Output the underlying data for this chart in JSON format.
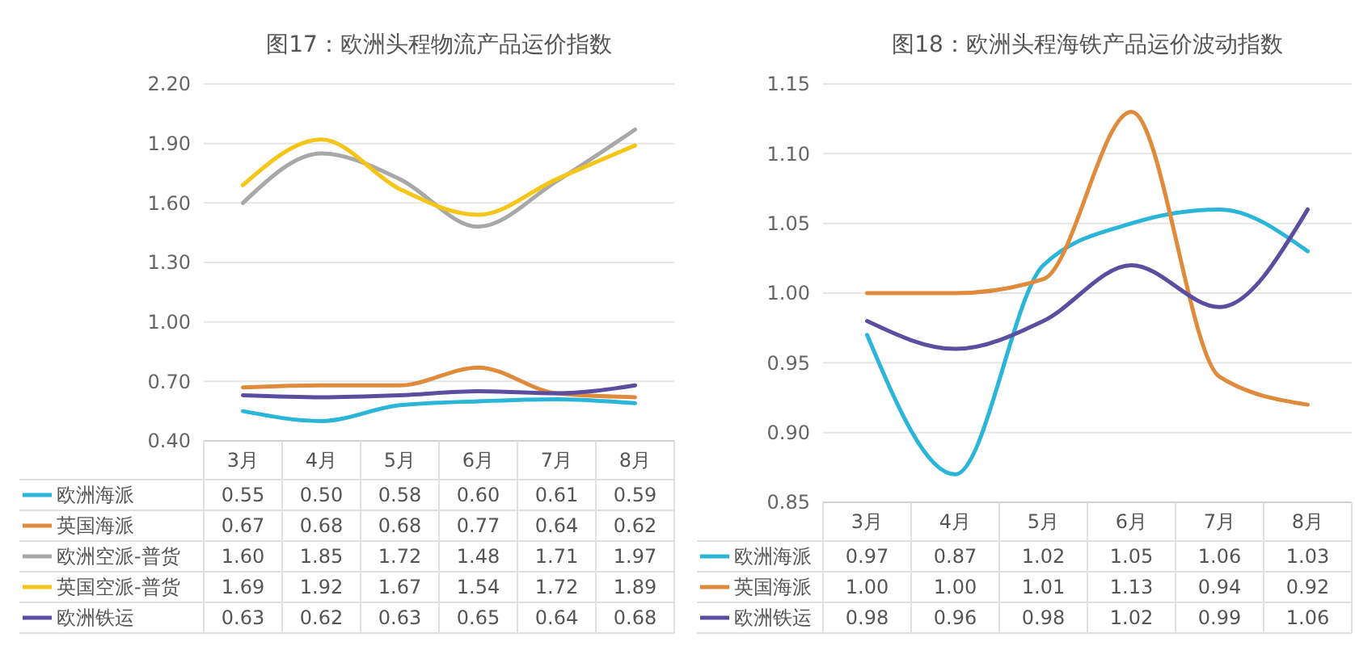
{
  "chart_data": [
    {
      "type": "line",
      "title": "图17：欧洲头程物流产品运价指数",
      "categories": [
        "3月",
        "4月",
        "5月",
        "6月",
        "7月",
        "8月"
      ],
      "ylim": [
        0.4,
        2.2
      ],
      "yticks": [
        {
          "value": 0.4,
          "label": "0.40"
        },
        {
          "value": 0.7,
          "label": "0.70"
        },
        {
          "value": 1.0,
          "label": "1.00"
        },
        {
          "value": 1.3,
          "label": "1.30"
        },
        {
          "value": 1.6,
          "label": "1.60"
        },
        {
          "value": 1.9,
          "label": "1.90"
        },
        {
          "value": 2.2,
          "label": "2.20"
        }
      ],
      "grid": "y",
      "legend": "bottom",
      "series": [
        {
          "name": "欧洲海派",
          "color": "#2bb5d8",
          "values": [
            0.55,
            0.5,
            0.58,
            0.6,
            0.61,
            0.59
          ],
          "value_labels": [
            "0.55",
            "0.50",
            "0.58",
            "0.60",
            "0.61",
            "0.59"
          ]
        },
        {
          "name": "英国海派",
          "color": "#e08a3c",
          "values": [
            0.67,
            0.68,
            0.68,
            0.77,
            0.64,
            0.62
          ],
          "value_labels": [
            "0.67",
            "0.68",
            "0.68",
            "0.77",
            "0.64",
            "0.62"
          ]
        },
        {
          "name": "欧洲空派-普货",
          "color": "#a8a8a8",
          "values": [
            1.6,
            1.85,
            1.72,
            1.48,
            1.71,
            1.97
          ],
          "value_labels": [
            "1.60",
            "1.85",
            "1.72",
            "1.48",
            "1.71",
            "1.97"
          ]
        },
        {
          "name": "英国空派-普货",
          "color": "#f5c518",
          "values": [
            1.69,
            1.92,
            1.67,
            1.54,
            1.72,
            1.89
          ],
          "value_labels": [
            "1.69",
            "1.92",
            "1.67",
            "1.54",
            "1.72",
            "1.89"
          ]
        },
        {
          "name": "欧洲铁运",
          "color": "#5b4ea0",
          "values": [
            0.63,
            0.62,
            0.63,
            0.65,
            0.64,
            0.68
          ],
          "value_labels": [
            "0.63",
            "0.62",
            "0.63",
            "0.65",
            "0.64",
            "0.68"
          ]
        }
      ]
    },
    {
      "type": "line",
      "title": "图18：欧洲头程海铁产品运价波动指数",
      "categories": [
        "3月",
        "4月",
        "5月",
        "6月",
        "7月",
        "8月"
      ],
      "ylim": [
        0.85,
        1.15
      ],
      "yticks": [
        {
          "value": 0.85,
          "label": "0.85"
        },
        {
          "value": 0.9,
          "label": "0.90"
        },
        {
          "value": 0.95,
          "label": "0.95"
        },
        {
          "value": 1.0,
          "label": "1.00"
        },
        {
          "value": 1.05,
          "label": "1.05"
        },
        {
          "value": 1.1,
          "label": "1.10"
        },
        {
          "value": 1.15,
          "label": "1.15"
        }
      ],
      "grid": "y",
      "legend": "bottom",
      "series": [
        {
          "name": "欧洲海派",
          "color": "#2bb5d8",
          "values": [
            0.97,
            0.87,
            1.02,
            1.05,
            1.06,
            1.03
          ],
          "value_labels": [
            "0.97",
            "0.87",
            "1.02",
            "1.05",
            "1.06",
            "1.03"
          ]
        },
        {
          "name": "英国海派",
          "color": "#e08a3c",
          "values": [
            1.0,
            1.0,
            1.01,
            1.13,
            0.94,
            0.92
          ],
          "value_labels": [
            "1.00",
            "1.00",
            "1.01",
            "1.13",
            "0.94",
            "0.92"
          ]
        },
        {
          "name": "欧洲铁运",
          "color": "#5b4ea0",
          "values": [
            0.98,
            0.96,
            0.98,
            1.02,
            0.99,
            1.06
          ],
          "value_labels": [
            "0.98",
            "0.96",
            "0.98",
            "1.02",
            "0.99",
            "1.06"
          ]
        }
      ]
    }
  ]
}
